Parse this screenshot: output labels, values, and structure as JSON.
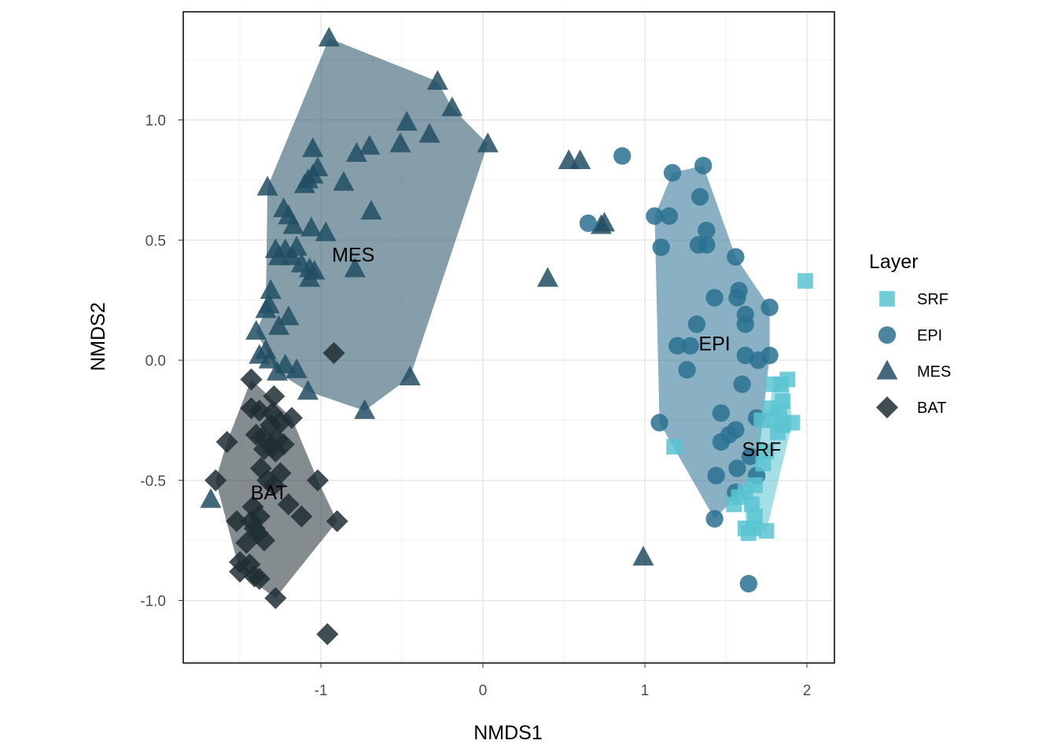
{
  "chart_data": {
    "type": "scatter",
    "xlabel": "NMDS1",
    "ylabel": "NMDS2",
    "xlim": [
      -1.85,
      2.17
    ],
    "ylim": [
      -1.26,
      1.45
    ],
    "x_ticks": [
      -1,
      0,
      1,
      2
    ],
    "x_tick_labels": [
      "-1",
      "0",
      "1",
      "2"
    ],
    "y_ticks": [
      -1.0,
      -0.5,
      0.0,
      0.5,
      1.0
    ],
    "y_tick_labels": [
      "-1.0",
      "-0.5",
      "0.0",
      "0.5",
      "1.0"
    ],
    "grid": true,
    "legend": {
      "title": "Layer",
      "placement": "right"
    },
    "series": [
      {
        "name": "SRF",
        "marker": "square",
        "color": "#5bc4d1",
        "label_at": [
          1.72,
          -0.37
        ],
        "points": [
          [
            1.99,
            0.33
          ],
          [
            1.88,
            -0.08
          ],
          [
            1.84,
            -0.1
          ],
          [
            1.79,
            -0.1
          ],
          [
            1.77,
            -0.2
          ],
          [
            1.85,
            -0.17
          ],
          [
            1.83,
            -0.22
          ],
          [
            1.91,
            -0.26
          ],
          [
            1.85,
            -0.27
          ],
          [
            1.8,
            -0.25
          ],
          [
            1.72,
            -0.25
          ],
          [
            1.82,
            -0.3
          ],
          [
            1.75,
            -0.38
          ],
          [
            1.73,
            -0.43
          ],
          [
            1.68,
            -0.52
          ],
          [
            1.62,
            -0.55
          ],
          [
            1.58,
            -0.57
          ],
          [
            1.55,
            -0.6
          ],
          [
            1.66,
            -0.6
          ],
          [
            1.68,
            -0.65
          ],
          [
            1.62,
            -0.7
          ],
          [
            1.67,
            -0.7
          ],
          [
            1.64,
            -0.72
          ],
          [
            1.75,
            -0.71
          ],
          [
            1.18,
            -0.36
          ]
        ]
      },
      {
        "name": "EPI",
        "marker": "circle",
        "color": "#2a7191",
        "label_at": [
          1.43,
          0.07
        ],
        "points": [
          [
            0.86,
            0.85
          ],
          [
            1.17,
            0.78
          ],
          [
            1.36,
            0.81
          ],
          [
            1.34,
            0.68
          ],
          [
            1.06,
            0.6
          ],
          [
            1.15,
            0.6
          ],
          [
            0.65,
            0.57
          ],
          [
            1.38,
            0.54
          ],
          [
            1.1,
            0.47
          ],
          [
            1.33,
            0.48
          ],
          [
            1.38,
            0.48
          ],
          [
            1.56,
            0.43
          ],
          [
            1.58,
            0.29
          ],
          [
            1.43,
            0.26
          ],
          [
            1.57,
            0.26
          ],
          [
            1.62,
            0.19
          ],
          [
            1.62,
            0.15
          ],
          [
            1.77,
            0.22
          ],
          [
            1.32,
            0.15
          ],
          [
            1.2,
            0.06
          ],
          [
            1.28,
            0.06
          ],
          [
            1.62,
            0.02
          ],
          [
            1.7,
            0.0
          ],
          [
            1.77,
            0.02
          ],
          [
            1.26,
            -0.04
          ],
          [
            1.6,
            -0.1
          ],
          [
            1.47,
            -0.22
          ],
          [
            1.69,
            -0.24
          ],
          [
            1.09,
            -0.26
          ],
          [
            1.56,
            -0.29
          ],
          [
            1.52,
            -0.31
          ],
          [
            1.47,
            -0.34
          ],
          [
            1.65,
            -0.4
          ],
          [
            1.57,
            -0.45
          ],
          [
            1.44,
            -0.48
          ],
          [
            1.69,
            -0.48
          ],
          [
            1.56,
            -0.55
          ],
          [
            1.43,
            -0.66
          ],
          [
            1.64,
            -0.93
          ]
        ]
      },
      {
        "name": "MES",
        "marker": "triangle",
        "color": "#214e63",
        "label_at": [
          -0.8,
          0.44
        ],
        "points": [
          [
            -0.95,
            1.34
          ],
          [
            -0.28,
            1.16
          ],
          [
            -0.19,
            1.05
          ],
          [
            -0.47,
            0.99
          ],
          [
            -0.33,
            0.94
          ],
          [
            0.03,
            0.9
          ],
          [
            -0.51,
            0.9
          ],
          [
            -0.7,
            0.89
          ],
          [
            -0.78,
            0.86
          ],
          [
            -1.05,
            0.88
          ],
          [
            -1.02,
            0.8
          ],
          [
            -1.05,
            0.77
          ],
          [
            -1.08,
            0.75
          ],
          [
            -1.1,
            0.73
          ],
          [
            -0.86,
            0.74
          ],
          [
            -1.33,
            0.72
          ],
          [
            -0.69,
            0.62
          ],
          [
            -1.23,
            0.63
          ],
          [
            -1.2,
            0.6
          ],
          [
            -1.17,
            0.56
          ],
          [
            -1.06,
            0.55
          ],
          [
            -0.97,
            0.53
          ],
          [
            -1.28,
            0.46
          ],
          [
            -1.22,
            0.46
          ],
          [
            -1.15,
            0.47
          ],
          [
            -1.26,
            0.43
          ],
          [
            -1.18,
            0.43
          ],
          [
            -1.12,
            0.4
          ],
          [
            -1.07,
            0.38
          ],
          [
            -1.04,
            0.37
          ],
          [
            -0.79,
            0.38
          ],
          [
            -1.07,
            0.34
          ],
          [
            -1.31,
            0.29
          ],
          [
            -1.32,
            0.23
          ],
          [
            -1.34,
            0.21
          ],
          [
            -1.2,
            0.18
          ],
          [
            -1.26,
            0.14
          ],
          [
            -1.4,
            0.12
          ],
          [
            -1.34,
            0.04
          ],
          [
            -1.38,
            0.02
          ],
          [
            -1.32,
            0.0
          ],
          [
            -1.22,
            -0.02
          ],
          [
            -1.15,
            -0.04
          ],
          [
            -1.27,
            -0.05
          ],
          [
            -1.08,
            -0.13
          ],
          [
            -0.45,
            -0.07
          ],
          [
            -0.73,
            -0.21
          ],
          [
            0.53,
            0.83
          ],
          [
            0.6,
            0.83
          ],
          [
            0.73,
            0.56
          ],
          [
            0.75,
            0.57
          ],
          [
            0.4,
            0.34
          ],
          [
            0.99,
            -0.82
          ],
          [
            -1.68,
            -0.58
          ]
        ]
      },
      {
        "name": "BAT",
        "marker": "diamond",
        "color": "#1f2e35",
        "label_at": [
          -1.32,
          -0.55
        ],
        "points": [
          [
            -0.92,
            0.03
          ],
          [
            -1.43,
            -0.08
          ],
          [
            -1.29,
            -0.15
          ],
          [
            -1.43,
            -0.2
          ],
          [
            -1.38,
            -0.21
          ],
          [
            -1.3,
            -0.22
          ],
          [
            -1.18,
            -0.24
          ],
          [
            -1.25,
            -0.26
          ],
          [
            -1.31,
            -0.27
          ],
          [
            -1.4,
            -0.31
          ],
          [
            -1.36,
            -0.32
          ],
          [
            -1.27,
            -0.33
          ],
          [
            -1.23,
            -0.35
          ],
          [
            -1.3,
            -0.36
          ],
          [
            -1.58,
            -0.34
          ],
          [
            -1.35,
            -0.37
          ],
          [
            -1.28,
            -0.38
          ],
          [
            -1.37,
            -0.45
          ],
          [
            -1.25,
            -0.47
          ],
          [
            -1.33,
            -0.5
          ],
          [
            -1.02,
            -0.5
          ],
          [
            -1.65,
            -0.5
          ],
          [
            -1.29,
            -0.52
          ],
          [
            -1.2,
            -0.6
          ],
          [
            -1.42,
            -0.61
          ],
          [
            -1.38,
            -0.65
          ],
          [
            -1.12,
            -0.65
          ],
          [
            -1.52,
            -0.67
          ],
          [
            -1.43,
            -0.67
          ],
          [
            -1.41,
            -0.7
          ],
          [
            -1.39,
            -0.72
          ],
          [
            -0.9,
            -0.67
          ],
          [
            -1.46,
            -0.76
          ],
          [
            -1.35,
            -0.75
          ],
          [
            -1.5,
            -0.84
          ],
          [
            -1.44,
            -0.85
          ],
          [
            -1.5,
            -0.88
          ],
          [
            -1.41,
            -0.9
          ],
          [
            -1.38,
            -0.91
          ],
          [
            -1.28,
            -0.99
          ],
          [
            -0.96,
            -1.14
          ]
        ]
      }
    ],
    "hulls": [
      {
        "group": "BAT",
        "color": "#1f2e35",
        "points": [
          [
            -1.43,
            -0.08
          ],
          [
            -1.18,
            -0.24
          ],
          [
            -1.02,
            -0.5
          ],
          [
            -0.9,
            -0.67
          ],
          [
            -1.28,
            -0.99
          ],
          [
            -1.5,
            -0.88
          ],
          [
            -1.65,
            -0.5
          ],
          [
            -1.58,
            -0.34
          ]
        ]
      },
      {
        "group": "MES",
        "color": "#214e63",
        "points": [
          [
            -0.95,
            1.34
          ],
          [
            -0.28,
            1.16
          ],
          [
            -0.19,
            1.05
          ],
          [
            0.03,
            0.9
          ],
          [
            -0.45,
            -0.07
          ],
          [
            -0.73,
            -0.21
          ],
          [
            -1.08,
            -0.13
          ],
          [
            -1.27,
            -0.05
          ],
          [
            -1.4,
            0.12
          ],
          [
            -1.34,
            0.21
          ],
          [
            -1.33,
            0.72
          ]
        ]
      },
      {
        "group": "EPI",
        "color": "#2a7191",
        "points": [
          [
            1.17,
            0.78
          ],
          [
            1.36,
            0.81
          ],
          [
            1.56,
            0.43
          ],
          [
            1.77,
            0.22
          ],
          [
            1.77,
            0.02
          ],
          [
            1.69,
            -0.48
          ],
          [
            1.43,
            -0.66
          ],
          [
            1.09,
            -0.26
          ],
          [
            1.06,
            0.6
          ]
        ]
      },
      {
        "group": "SRF",
        "color": "#5bc4d1",
        "points": [
          [
            1.79,
            -0.1
          ],
          [
            1.84,
            -0.1
          ],
          [
            1.88,
            -0.08
          ],
          [
            1.91,
            -0.26
          ],
          [
            1.75,
            -0.71
          ],
          [
            1.64,
            -0.72
          ],
          [
            1.62,
            -0.7
          ],
          [
            1.62,
            -0.55
          ],
          [
            1.72,
            -0.25
          ],
          [
            1.77,
            -0.2
          ]
        ]
      }
    ]
  }
}
